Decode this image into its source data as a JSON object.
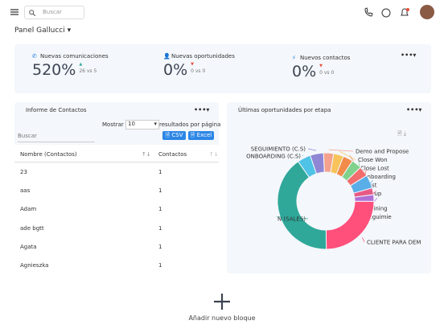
{
  "header": {
    "search_placeholder": "Buscar"
  },
  "panel_title": "Panel Gallucci",
  "stats": [
    {
      "label": "Nuevas comunicaciones",
      "value": "520%",
      "comparison": "26 vs 5"
    },
    {
      "label": "Nuevas oportunidades",
      "value": "0%",
      "comparison": "0 vs 0"
    },
    {
      "label": "Nuevos contactos",
      "value": "0%",
      "comparison": "0 vs 0"
    }
  ],
  "contacts": {
    "title": "Informe de Contactos",
    "show_label": "Mostrar",
    "page_size": "10",
    "page_size_suffix": "resultados por página",
    "search_placeholder": "Buscar",
    "buttons": [
      "CSV",
      "Excel"
    ],
    "columns": [
      "Nombre (Contactos)",
      "Contactos"
    ],
    "rows": [
      [
        "23",
        1
      ],
      [
        "aas",
        1
      ],
      [
        "Adam",
        1
      ],
      [
        "ade bgtt",
        1
      ],
      [
        "Agata",
        1
      ],
      [
        "Agnieszka",
        1
      ]
    ]
  },
  "opportunities": {
    "title": "Últimas oportunidades por etapa",
    "chart": {
      "type": "pie",
      "categories": [
        "ONBOARDING (C.S)",
        "SEGUIMIENTO (C.S)",
        "Demo and Propose",
        "Close Won",
        "Close Lost",
        "Onboarding",
        "Lost",
        "Setup",
        "Training",
        "Seguimie",
        "CLIENTE PARA DEM",
        "N (SALES)"
      ],
      "values": [
        4,
        4,
        3,
        3,
        3,
        3,
        3,
        4,
        2,
        2,
        22,
        36
      ],
      "colors": [
        "#4fc3e6",
        "#8f86d4",
        "#f4a28c",
        "#f7c35a",
        "#f28b4a",
        "#7fd18b",
        "#f26d6d",
        "#5aaee8",
        "#e85a86",
        "#b06fd6",
        "#ff4f7b",
        "#2fa89a"
      ]
    }
  },
  "add_block": "Añadir nuevo bloque"
}
